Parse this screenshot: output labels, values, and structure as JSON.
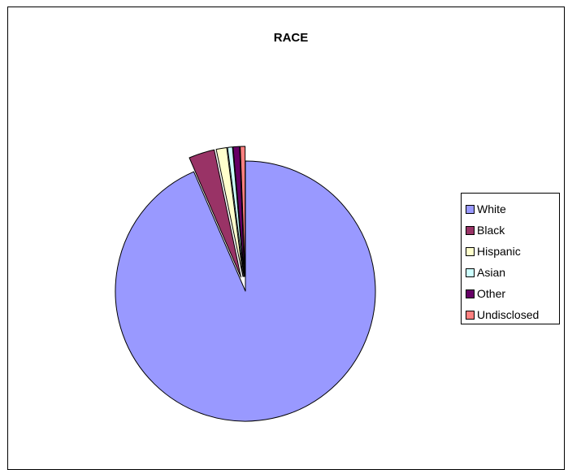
{
  "chart_data": {
    "type": "pie",
    "title": "RACE",
    "categories": [
      "White",
      "Black",
      "Hispanic",
      "Asian",
      "Other",
      "Undisclosed"
    ],
    "values": [
      93.5,
      3.2,
      1.3,
      0.6,
      0.8,
      0.6
    ],
    "colors": [
      "#9999FF",
      "#993366",
      "#FFFFCC",
      "#CCFFFF",
      "#660066",
      "#FF8080"
    ],
    "exploded": [
      false,
      true,
      true,
      true,
      true,
      true
    ],
    "start_angle_deg": 0,
    "legend_position": "right"
  }
}
